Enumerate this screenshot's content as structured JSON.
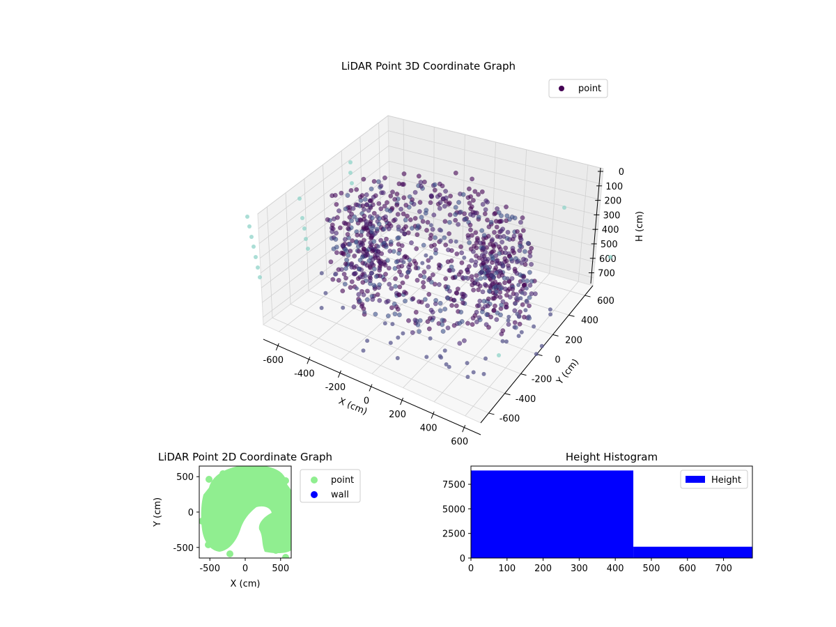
{
  "figure": {
    "background": "#ffffff"
  },
  "chart_data": [
    {
      "type": "scatter3d",
      "title": "LiDAR Point 3D Coordinate Graph",
      "xlabel": "X (cm)",
      "ylabel": "Y (cm)",
      "zlabel": "H (cm)",
      "xlim": [
        -700,
        700
      ],
      "ylim": [
        -700,
        700
      ],
      "zlim": [
        0,
        750
      ],
      "z_inverted": true,
      "x_ticks": [
        "-600",
        "-400",
        "-200",
        "0",
        "200",
        "400",
        "600"
      ],
      "y_ticks": [
        "-600",
        "-400",
        "-200",
        "0",
        "200",
        "400",
        "600"
      ],
      "z_ticks": [
        "0",
        "100",
        "200",
        "300",
        "400",
        "500",
        "600",
        "700"
      ],
      "legend": {
        "placement": "top-right",
        "entries": [
          {
            "label": "point",
            "color": "#440154"
          }
        ]
      },
      "colormap": "viridis",
      "grid": true,
      "description_of_shape": "dense ring of points around origin at radius ~350-600 cm, heights mostly 50-500 cm, with sparse outliers"
    },
    {
      "type": "scatter",
      "title": "LiDAR Point 2D Coordinate Graph",
      "xlabel": "X (cm)",
      "ylabel": "Y (cm)",
      "xlim": [
        -650,
        650
      ],
      "ylim": [
        -650,
        650
      ],
      "x_ticks": [
        "-500",
        "0",
        "500"
      ],
      "y_ticks": [
        "-500",
        "0",
        "500"
      ],
      "legend": {
        "placement": "outside-right",
        "entries": [
          {
            "label": "point",
            "color": "#90ee90"
          },
          {
            "label": "wall",
            "color": "#0000ff"
          }
        ]
      }
    },
    {
      "type": "bar",
      "title": "Height Histogram",
      "bins": [
        {
          "x0": 0,
          "x1": 450,
          "count": 8900
        },
        {
          "x0": 450,
          "x1": 780,
          "count": 1150
        }
      ],
      "xlim": [
        0,
        780
      ],
      "ylim": [
        0,
        9350
      ],
      "x_ticks": [
        "0",
        "100",
        "200",
        "300",
        "400",
        "500",
        "600",
        "700"
      ],
      "y_ticks": [
        "0",
        "2500",
        "5000",
        "7500"
      ],
      "legend": {
        "placement": "top-right",
        "entries": [
          {
            "label": "Height",
            "color": "#0000ff"
          }
        ]
      },
      "color": "#0000ff"
    }
  ]
}
